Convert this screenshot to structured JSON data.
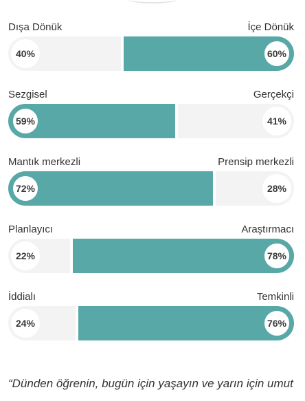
{
  "traits": [
    {
      "left_label": "Dışa Dönük",
      "right_label": "İçe Dönük",
      "left_pct": "40%",
      "right_pct": "60%",
      "left_value": 40,
      "right_value": 60,
      "dominant": "right"
    },
    {
      "left_label": "Sezgisel",
      "right_label": "Gerçekçi",
      "left_pct": "59%",
      "right_pct": "41%",
      "left_value": 59,
      "right_value": 41,
      "dominant": "left"
    },
    {
      "left_label": "Mantık merkezli",
      "right_label": "Prensip merkezli",
      "left_pct": "72%",
      "right_pct": "28%",
      "left_value": 72,
      "right_value": 28,
      "dominant": "left"
    },
    {
      "left_label": "Planlayıcı",
      "right_label": "Araştırmacı",
      "left_pct": "22%",
      "right_pct": "78%",
      "left_value": 22,
      "right_value": 78,
      "dominant": "right"
    },
    {
      "left_label": "İddialı",
      "right_label": "Temkinli",
      "left_pct": "24%",
      "right_pct": "76%",
      "left_value": 24,
      "right_value": 76,
      "dominant": "right"
    }
  ],
  "quote": {
    "text": "“Dünden öğrenin, bugün için yaşayın ve yarın için umut"
  },
  "colors": {
    "accent": "#58a8a8",
    "track": "#f3f3f3"
  }
}
